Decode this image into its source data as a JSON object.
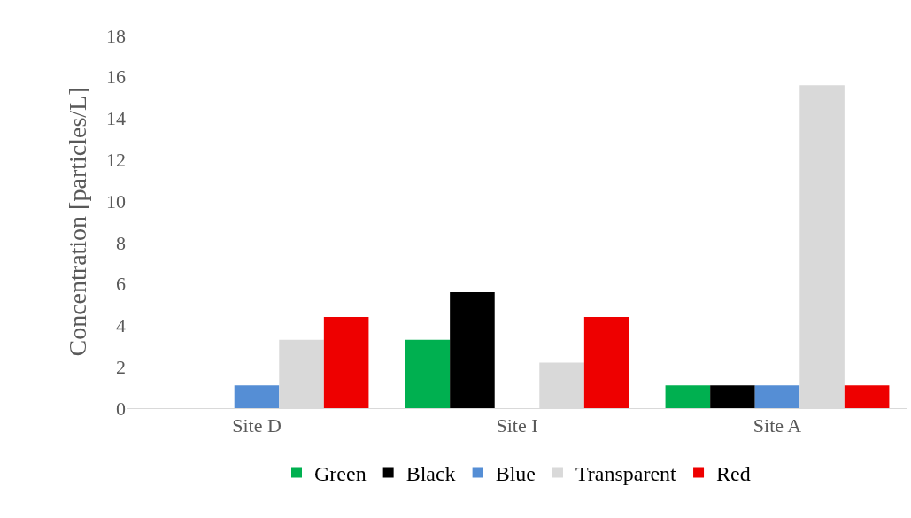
{
  "chart_data": {
    "type": "bar",
    "ylabel": "Concentration [particles/L]",
    "categories": [
      "Site D",
      "Site I",
      "Site A"
    ],
    "series": [
      {
        "name": "Green",
        "color": "#00b050",
        "values": [
          0,
          3.3,
          1.1
        ]
      },
      {
        "name": "Black",
        "color": "#000000",
        "values": [
          0,
          5.6,
          1.1
        ]
      },
      {
        "name": "Blue",
        "color": "#558ed5",
        "values": [
          1.1,
          0,
          1.1
        ]
      },
      {
        "name": "Transparent",
        "color": "#d9d9d9",
        "values": [
          3.3,
          2.2,
          15.6
        ]
      },
      {
        "name": "Red",
        "color": "#ee0000",
        "values": [
          4.4,
          4.4,
          1.1
        ]
      }
    ],
    "ylim": [
      0,
      18
    ],
    "yticks": [
      0,
      2,
      4,
      6,
      8,
      10,
      12,
      14,
      16,
      18
    ],
    "grid": false,
    "legend": "bottom"
  }
}
